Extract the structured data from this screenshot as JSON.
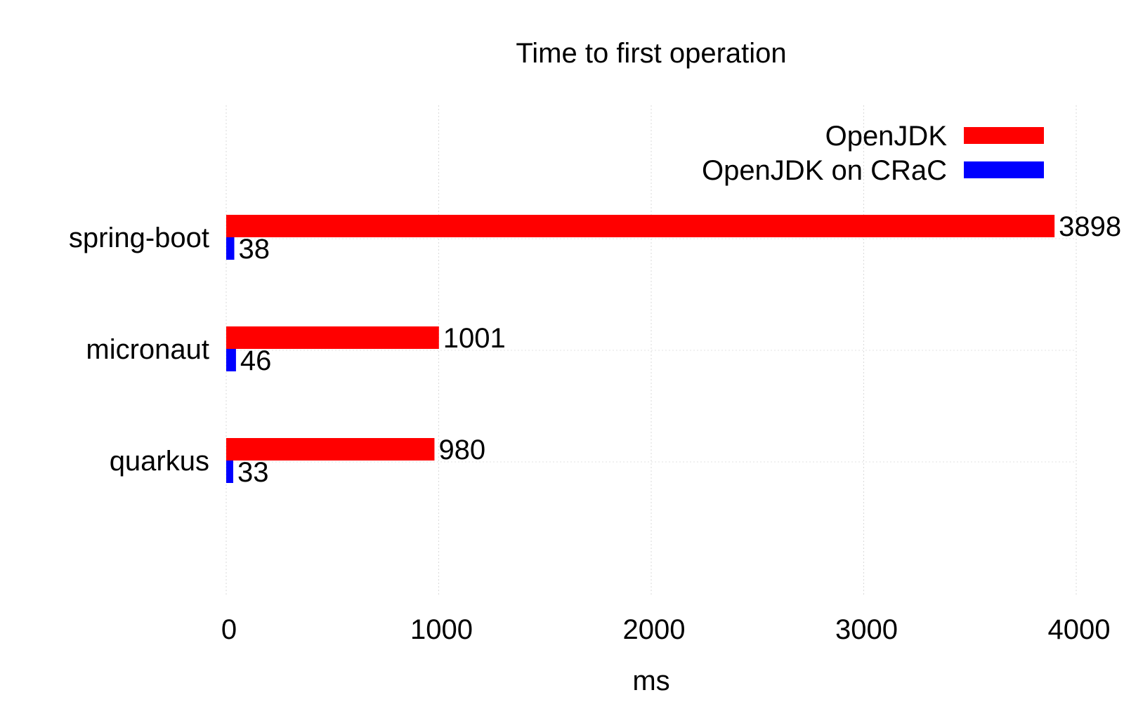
{
  "chart_data": {
    "type": "bar",
    "orientation": "horizontal",
    "title": "Time to first operation",
    "xlabel": "ms",
    "ylabel": "",
    "xlim": [
      0,
      4000
    ],
    "xticks": [
      "0",
      "1000",
      "2000",
      "3000",
      "4000"
    ],
    "categories": [
      "spring-boot",
      "micronaut",
      "quarkus"
    ],
    "series": [
      {
        "name": "OpenJDK",
        "color": "#ff0000",
        "values": [
          3898,
          1001,
          980
        ]
      },
      {
        "name": "OpenJDK on CRaC",
        "color": "#0000ff",
        "values": [
          38,
          46,
          33
        ]
      }
    ],
    "grid": true,
    "legend": "top-right",
    "data_labels": true
  }
}
